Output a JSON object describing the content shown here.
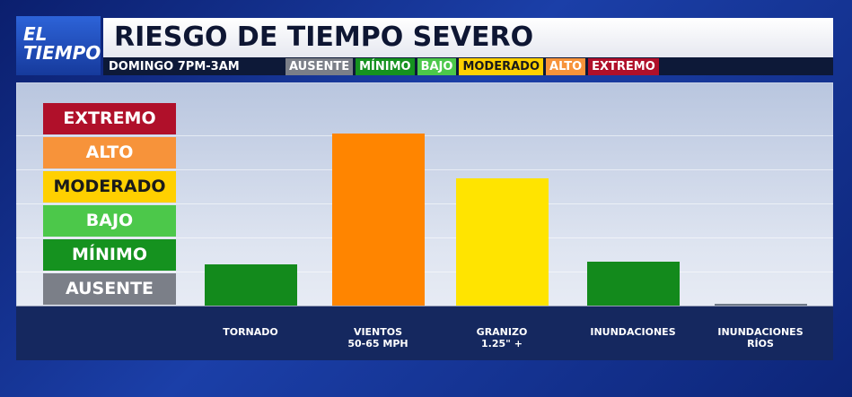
{
  "chart_data": {
    "type": "bar",
    "brand": "EL\nTIEMPO",
    "title": "RIESGO DE TIEMPO SEVERO",
    "subtitle": "DOMINGO 7PM-3AM",
    "categories": [
      "TORNADO",
      "VIENTOS\n50-65 MPH",
      "GRANIZO\n1.25\" +",
      "INUNDACIONES",
      "INUNDACIONES\nRÍOS"
    ],
    "values": [
      1.2,
      5.05,
      3.75,
      1.3,
      0.05
    ],
    "colors": [
      "#138a1c",
      "#ff8500",
      "#ffe400",
      "#138a1c",
      "#6f7a88"
    ],
    "ylim": [
      0,
      6
    ],
    "yticks": [
      {
        "value": 0,
        "label": "AUSENTE"
      },
      {
        "value": 1,
        "label": "MÍNIMO"
      },
      {
        "value": 2,
        "label": "BAJO"
      },
      {
        "value": 3,
        "label": "MODERADO"
      },
      {
        "value": 4,
        "label": "ALTO"
      },
      {
        "value": 5,
        "label": "EXTREMO"
      }
    ],
    "level_colors": [
      "#7b7f88",
      "#15921f",
      "#4cc84a",
      "#ffd000",
      "#f7933a",
      "#b0102a"
    ],
    "grid": true
  }
}
